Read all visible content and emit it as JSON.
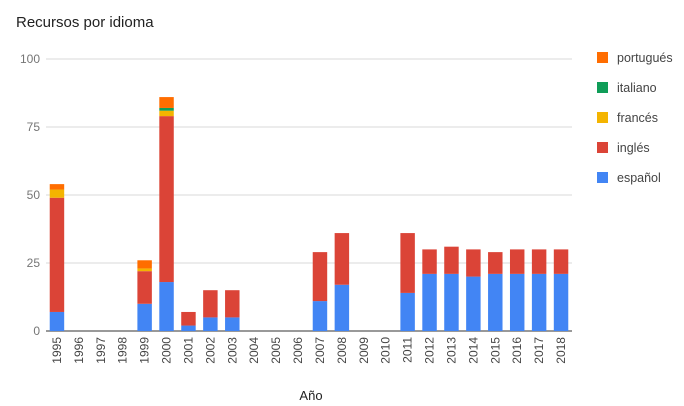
{
  "chart_data": {
    "type": "bar",
    "stacked": true,
    "title": "Recursos por idioma",
    "xlabel": "Año",
    "ylabel": "",
    "ylim": [
      0,
      100
    ],
    "yticks": [
      0,
      25,
      50,
      75,
      100
    ],
    "grid": true,
    "legend_position": "right",
    "categories": [
      "1995",
      "1996",
      "1997",
      "1998",
      "1999",
      "2000",
      "2001",
      "2002",
      "2003",
      "2004",
      "2005",
      "2006",
      "2007",
      "2008",
      "2009",
      "2010",
      "2011",
      "2012",
      "2013",
      "2014",
      "2015",
      "2016",
      "2017",
      "2018"
    ],
    "series": [
      {
        "name": "español",
        "color": "#4285f4",
        "values": [
          7,
          0,
          0,
          0,
          10,
          18,
          2,
          5,
          5,
          0,
          0,
          0,
          11,
          17,
          0,
          0,
          14,
          21,
          21,
          20,
          21,
          21,
          21,
          21
        ]
      },
      {
        "name": "inglés",
        "color": "#db4437",
        "values": [
          42,
          0,
          0,
          0,
          12,
          61,
          5,
          10,
          10,
          0,
          0,
          0,
          18,
          19,
          0,
          0,
          22,
          9,
          10,
          10,
          8,
          9,
          9,
          9
        ]
      },
      {
        "name": "francés",
        "color": "#f4b400",
        "values": [
          3,
          0,
          0,
          0,
          1,
          2,
          0,
          0,
          0,
          0,
          0,
          0,
          0,
          0,
          0,
          0,
          0,
          0,
          0,
          0,
          0,
          0,
          0,
          0
        ]
      },
      {
        "name": "italiano",
        "color": "#0f9d58",
        "values": [
          0,
          0,
          0,
          0,
          0,
          1,
          0,
          0,
          0,
          0,
          0,
          0,
          0,
          0,
          0,
          0,
          0,
          0,
          0,
          0,
          0,
          0,
          0,
          0
        ]
      },
      {
        "name": "portugués",
        "color": "#ff6d00",
        "values": [
          2,
          0,
          0,
          0,
          3,
          4,
          0,
          0,
          0,
          0,
          0,
          0,
          0,
          0,
          0,
          0,
          0,
          0,
          0,
          0,
          0,
          0,
          0,
          0
        ]
      }
    ]
  }
}
